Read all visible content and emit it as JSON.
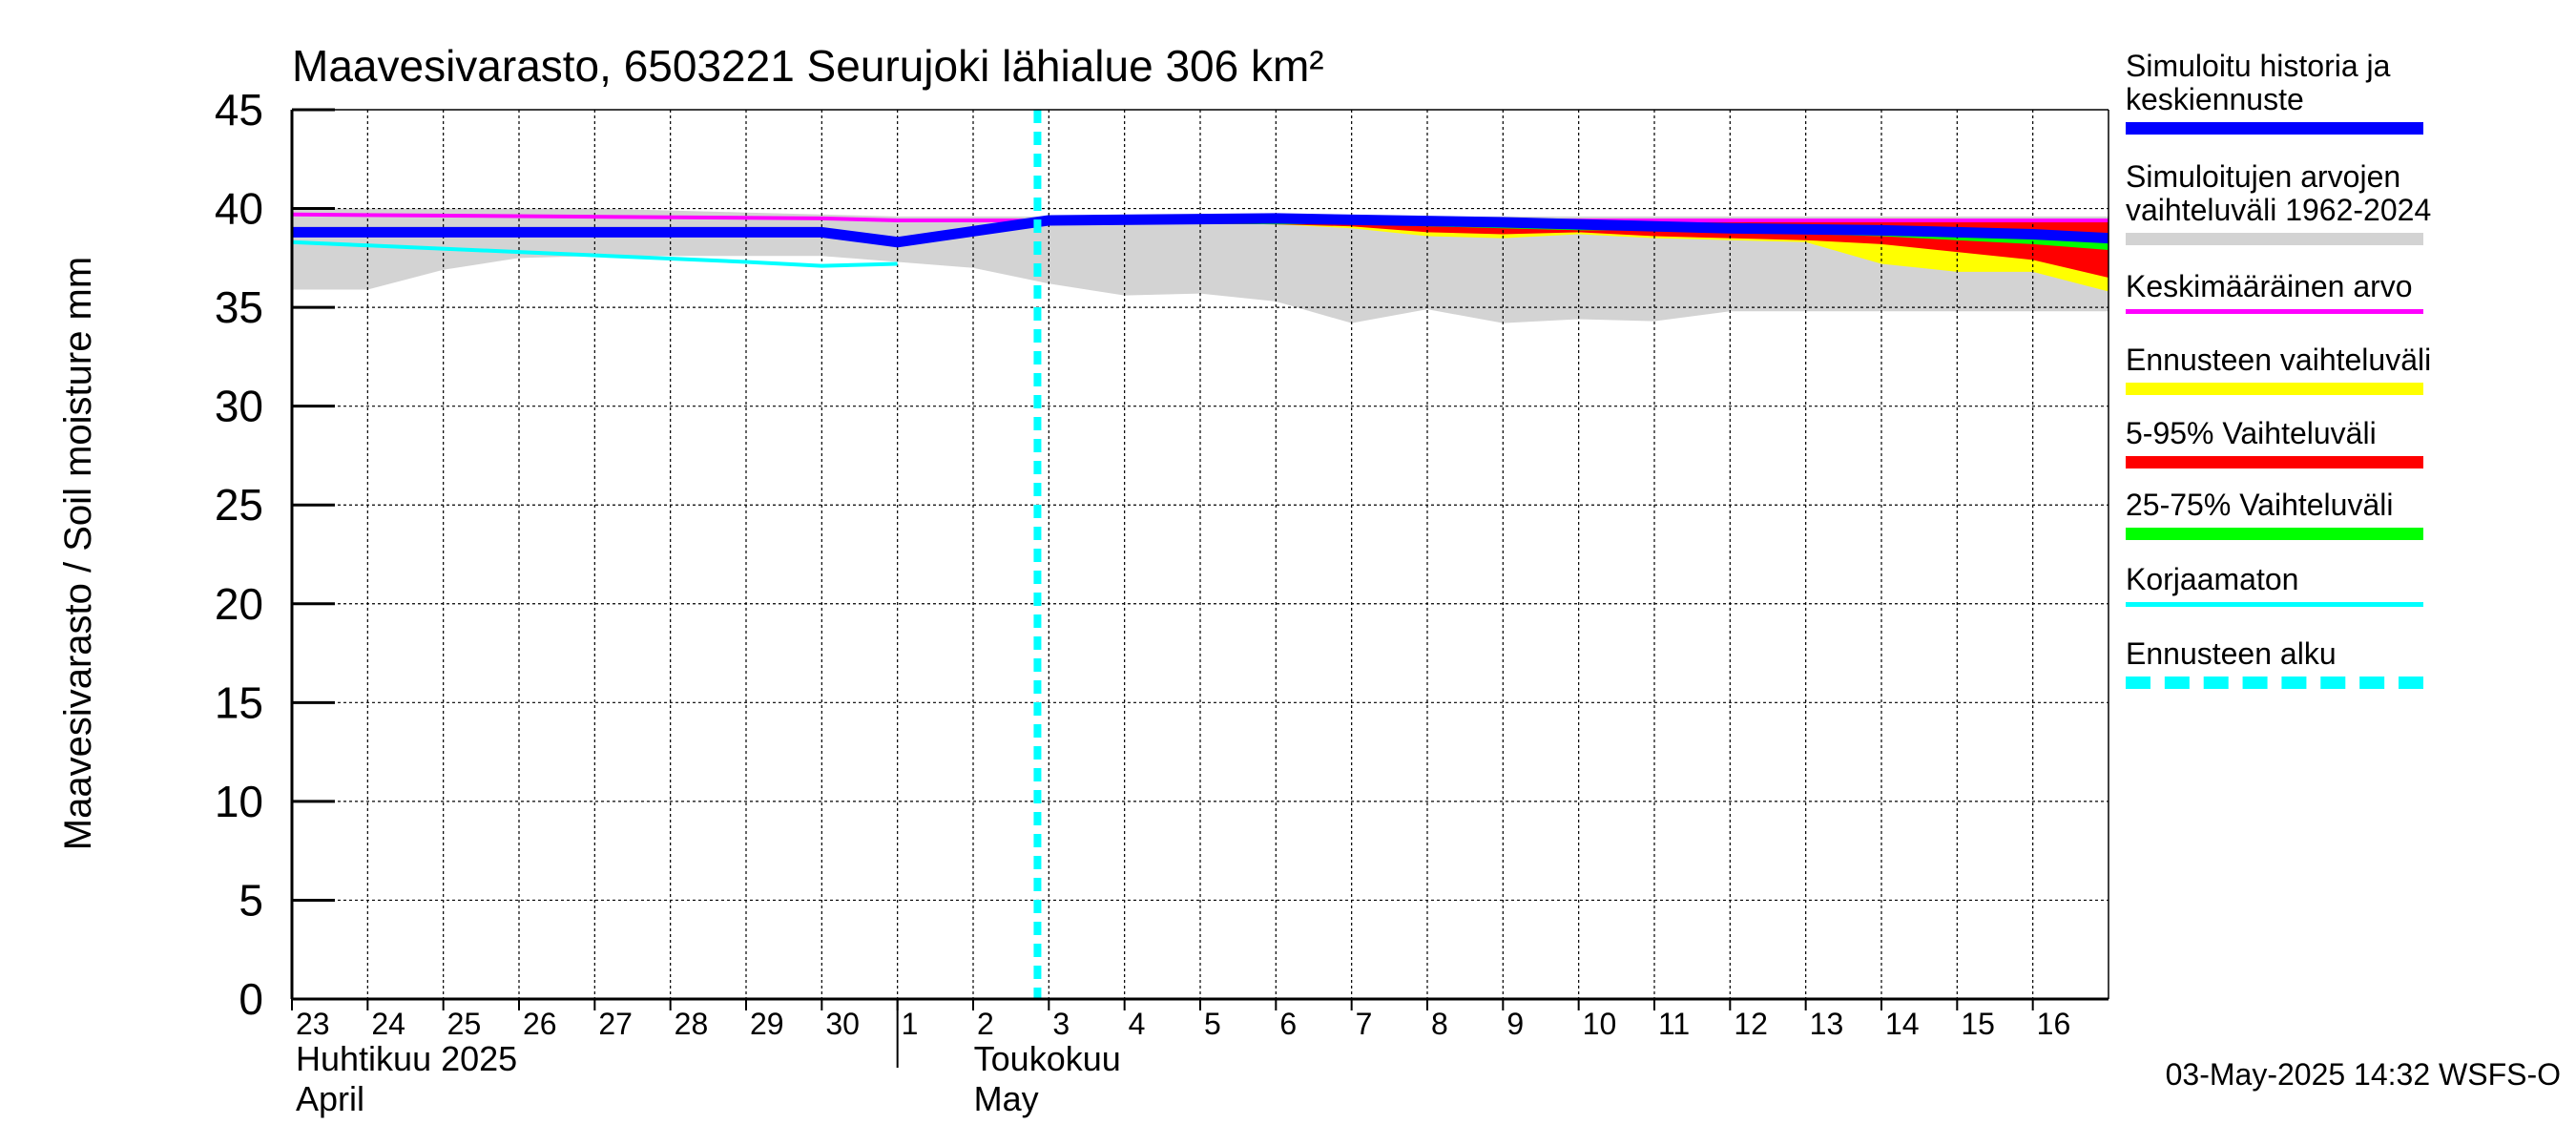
{
  "chart_data": {
    "type": "area",
    "title": "Maavesivarasto, 6503221 Seurujoki lähialue 306 km²",
    "ylabel": "Maavesivarasto / Soil moisture   mm",
    "ylim": [
      0,
      45
    ],
    "yticks": [
      0,
      5,
      10,
      15,
      20,
      25,
      30,
      35,
      40,
      45
    ],
    "xlim": [
      "2025-04-23",
      "2025-05-17"
    ],
    "x_tick_labels": [
      "23",
      "24",
      "25",
      "26",
      "27",
      "28",
      "29",
      "30",
      "1",
      "2",
      "3",
      "4",
      "5",
      "6",
      "7",
      "8",
      "9",
      "10",
      "11",
      "12",
      "13",
      "14",
      "15",
      "16"
    ],
    "month_labels": [
      {
        "fi": "Huhtikuu  2025",
        "en": "April"
      },
      {
        "fi": "Toukokuu",
        "en": "May"
      }
    ],
    "grid": true,
    "legend_placement": "right",
    "forecast_start": "2025-05-03",
    "series": [
      {
        "name": "Simuloitujen arvojen vaihteluväli 1962-2024",
        "kind": "band",
        "x": [
          "2025-04-23",
          "2025-04-24",
          "2025-04-25",
          "2025-04-26",
          "2025-04-27",
          "2025-04-28",
          "2025-04-29",
          "2025-04-30",
          "2025-05-01",
          "2025-05-02",
          "2025-05-03",
          "2025-05-04",
          "2025-05-05",
          "2025-05-06",
          "2025-05-07",
          "2025-05-08",
          "2025-05-09",
          "2025-05-10",
          "2025-05-11",
          "2025-05-12",
          "2025-05-13",
          "2025-05-14",
          "2025-05-15",
          "2025-05-16",
          "2025-05-17"
        ],
        "upper": [
          40.0,
          40.0,
          40.0,
          40.0,
          40.0,
          39.9,
          39.8,
          39.7,
          39.6,
          39.6,
          39.6,
          39.6,
          39.6,
          39.6,
          39.6,
          39.6,
          39.6,
          39.6,
          39.6,
          39.6,
          39.6,
          39.6,
          39.6,
          39.6,
          39.6
        ],
        "lower": [
          35.9,
          35.9,
          36.9,
          37.5,
          37.6,
          37.6,
          37.6,
          37.6,
          37.3,
          37.0,
          36.2,
          35.6,
          35.7,
          35.3,
          34.2,
          34.9,
          34.2,
          34.4,
          34.3,
          34.8,
          34.8,
          34.8,
          34.8,
          34.8,
          34.8
        ]
      },
      {
        "name": "Ennusteen vaihteluväli",
        "kind": "band",
        "x": [
          "2025-05-03",
          "2025-05-06",
          "2025-05-07",
          "2025-05-08",
          "2025-05-09",
          "2025-05-10",
          "2025-05-11",
          "2025-05-12",
          "2025-05-13",
          "2025-05-14",
          "2025-05-15",
          "2025-05-16",
          "2025-05-17"
        ],
        "upper": [
          39.3,
          39.3,
          39.4,
          39.4,
          39.4,
          39.5,
          39.4,
          39.4,
          39.4,
          39.5,
          39.5,
          39.4,
          39.3
        ],
        "lower": [
          39.3,
          39.2,
          39.0,
          38.6,
          38.5,
          38.7,
          38.5,
          38.4,
          38.3,
          37.2,
          36.8,
          36.8,
          35.8
        ]
      },
      {
        "name": "5-95% Vaihteluväli",
        "kind": "band",
        "x": [
          "2025-05-03",
          "2025-05-06",
          "2025-05-07",
          "2025-05-08",
          "2025-05-09",
          "2025-05-10",
          "2025-05-11",
          "2025-05-12",
          "2025-05-13",
          "2025-05-14",
          "2025-05-15",
          "2025-05-16",
          "2025-05-17"
        ],
        "upper": [
          39.3,
          39.3,
          39.4,
          39.4,
          39.4,
          39.4,
          39.3,
          39.3,
          39.3,
          39.4,
          39.4,
          39.4,
          39.3
        ],
        "lower": [
          39.3,
          39.2,
          39.1,
          38.8,
          38.7,
          38.8,
          38.6,
          38.5,
          38.4,
          38.2,
          37.8,
          37.4,
          36.5
        ]
      },
      {
        "name": "25-75% Vaihteluväli",
        "kind": "band",
        "x": [
          "2025-05-03",
          "2025-05-06",
          "2025-05-07",
          "2025-05-08",
          "2025-05-09",
          "2025-05-10",
          "2025-05-11",
          "2025-05-12",
          "2025-05-13",
          "2025-05-14",
          "2025-05-15",
          "2025-05-16",
          "2025-05-17"
        ],
        "upper": [
          39.3,
          39.3,
          39.3,
          39.3,
          39.3,
          39.2,
          39.2,
          39.2,
          39.1,
          39.1,
          39.0,
          38.9,
          38.7
        ],
        "lower": [
          39.3,
          39.2,
          39.2,
          39.1,
          39.0,
          38.9,
          38.9,
          38.8,
          38.7,
          38.6,
          38.4,
          38.2,
          37.9
        ]
      },
      {
        "name": "Keskimääräinen arvo",
        "kind": "line",
        "x": [
          "2025-04-23",
          "2025-04-30",
          "2025-05-01",
          "2025-05-03",
          "2025-05-17"
        ],
        "y": [
          39.7,
          39.5,
          39.4,
          39.4,
          39.4
        ]
      },
      {
        "name": "Korjaamaton",
        "kind": "line",
        "x": [
          "2025-04-23",
          "2025-04-26",
          "2025-04-29",
          "2025-04-30",
          "2025-05-01"
        ],
        "y": [
          38.3,
          37.8,
          37.3,
          37.1,
          37.2
        ]
      },
      {
        "name": "Simuloitu historia ja keskiennuste",
        "kind": "line",
        "x": [
          "2025-04-23",
          "2025-04-30",
          "2025-05-01",
          "2025-05-03",
          "2025-05-06",
          "2025-05-09",
          "2025-05-12",
          "2025-05-14",
          "2025-05-16",
          "2025-05-17"
        ],
        "y": [
          38.8,
          38.8,
          38.3,
          39.4,
          39.5,
          39.3,
          39.0,
          38.9,
          38.7,
          38.5
        ]
      }
    ]
  },
  "legend": [
    {
      "label": "Simuloitu historia ja\nkeskiennuste",
      "color": "#0000ff",
      "style": "thick"
    },
    {
      "label": "Simuloitujen arvojen\nvaihteluväli 1962-2024",
      "color": "#d3d3d3",
      "style": "thick"
    },
    {
      "label": "Keskimääräinen arvo",
      "color": "#ff00ff",
      "style": "thin"
    },
    {
      "label": "Ennusteen vaihteluväli",
      "color": "#ffff00",
      "style": "thick"
    },
    {
      "label": "5-95% Vaihteluväli",
      "color": "#ff0000",
      "style": "thick"
    },
    {
      "label": "25-75% Vaihteluväli",
      "color": "#00ff00",
      "style": "thick"
    },
    {
      "label": "Korjaamaton",
      "color": "#00ffff",
      "style": "thin"
    },
    {
      "label": "Ennusteen alku",
      "color": "#00ffff",
      "style": "dashed"
    }
  ],
  "footer": "03-May-2025 14:32 WSFS-O"
}
